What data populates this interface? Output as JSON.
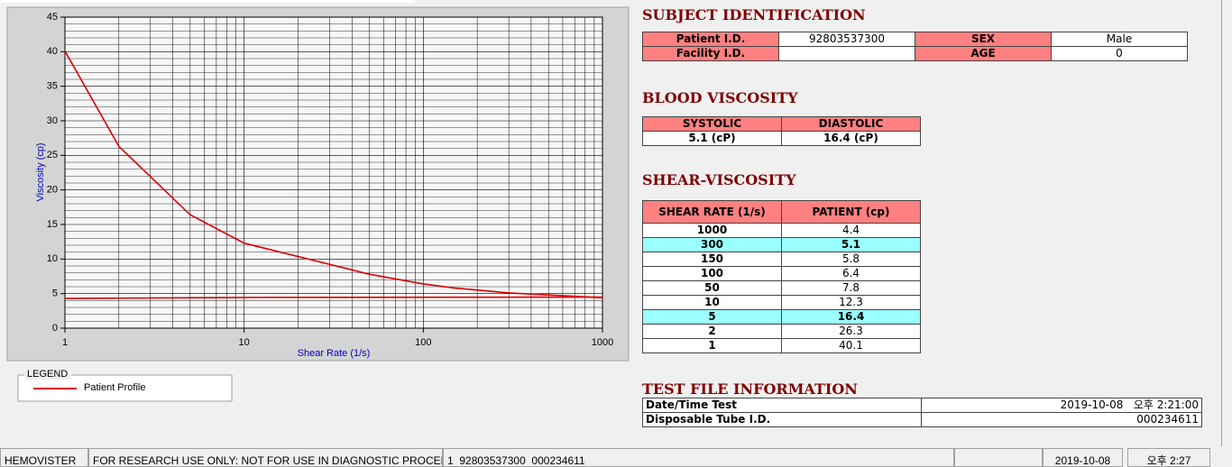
{
  "chart_data": {
    "type": "line",
    "xlabel": "Shear Rate (1/s)",
    "ylabel": "Viscosity (cp)",
    "xscale": "log",
    "xlim": [
      1,
      1000
    ],
    "xticks": [
      1,
      10,
      100,
      1000
    ],
    "ylim": [
      0,
      45
    ],
    "yticks": [
      0,
      5,
      10,
      15,
      20,
      25,
      30,
      35,
      40,
      45
    ],
    "grid": true,
    "legend": {
      "title": "LEGEND"
    },
    "series": [
      {
        "name": "Patient Profile",
        "color": "#dd0000",
        "x": [
          1,
          2,
          5,
          10,
          50,
          100,
          150,
          300,
          1000
        ],
        "values": [
          40.1,
          26.3,
          16.4,
          12.3,
          7.8,
          6.4,
          5.8,
          5.1,
          4.4
        ]
      },
      {
        "color": "#dd0000",
        "x": [
          1,
          12,
          1000
        ],
        "values": [
          4.3,
          4.45,
          4.5
        ]
      }
    ]
  },
  "subject_identification": {
    "title": "SUBJECT IDENTIFICATION",
    "rows": [
      [
        {
          "label": "Patient I.D.",
          "value": "92803537300"
        },
        {
          "label": "SEX",
          "value": "Male"
        }
      ],
      [
        {
          "label": "Facility I.D."
        },
        {
          "label": "AGE",
          "value": 0
        }
      ]
    ]
  },
  "blood_viscosity": {
    "title": "BLOOD VISCOSITY",
    "headers": [
      "SYSTOLIC",
      "DIASTOLIC"
    ],
    "values": [
      "5.1 (cP)",
      "16.4 (cP)"
    ]
  },
  "shear_viscosity": {
    "title": "SHEAR-VISCOSITY",
    "headers": [
      "SHEAR RATE (1/s)",
      "PATIENT (cp)"
    ],
    "rows": [
      {
        "shear_rate": 1000,
        "patient": 4.4
      },
      {
        "shear_rate": 300,
        "patient": 5.1,
        "highlight": true
      },
      {
        "shear_rate": 150,
        "patient": 5.8
      },
      {
        "shear_rate": 100,
        "patient": 6.4
      },
      {
        "shear_rate": 50,
        "patient": 7.8
      },
      {
        "shear_rate": 10,
        "patient": 12.3
      },
      {
        "shear_rate": 5,
        "patient": 16.4,
        "highlight": true
      },
      {
        "shear_rate": 2,
        "patient": 26.3
      },
      {
        "shear_rate": 1,
        "patient": 40.1
      }
    ]
  },
  "test_file": {
    "title": "TEST FILE INFORMATION",
    "rows": [
      {
        "label": "Date/Time Test",
        "value": "2019-10-08   오후 2:21:00"
      },
      {
        "label": "Disposable Tube I.D.",
        "value": "000234611"
      }
    ]
  },
  "status_bar": [
    "HEMOVISTER",
    "FOR RESEARCH USE ONLY: NOT FOR USE IN DIAGNOSTIC PROCEDURES",
    "1  92803537300  000234611",
    "2019-10-08",
    "오후 2:27"
  ]
}
